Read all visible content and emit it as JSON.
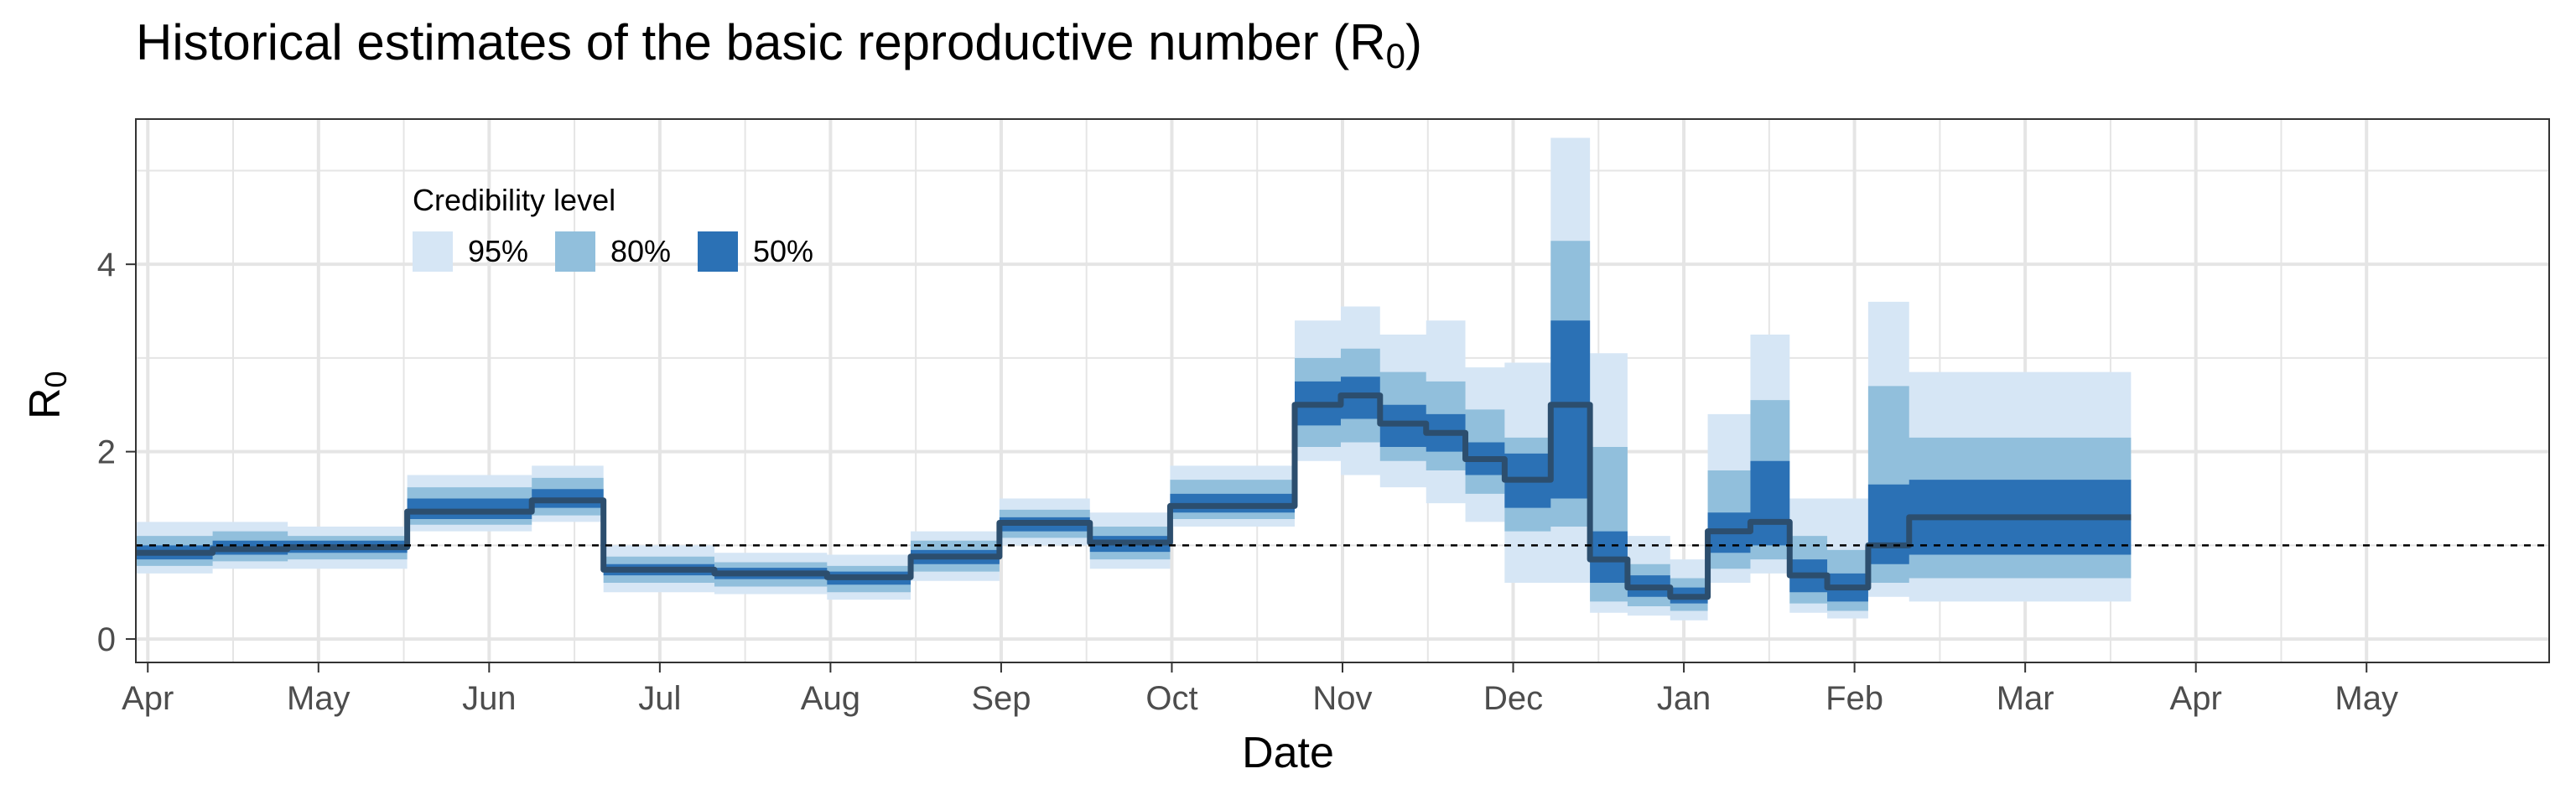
{
  "chart_data": {
    "type": "area",
    "title_main": "Historical estimates of the basic reproductive number (R",
    "title_sub": "0",
    "title_end": ")",
    "xlabel": "Date",
    "ylabel_main": "R",
    "ylabel_sub": "0",
    "x_ticks": [
      "Apr",
      "May",
      "Jun",
      "Jul",
      "Aug",
      "Sep",
      "Oct",
      "Nov",
      "Dec",
      "Jan",
      "Feb",
      "Mar",
      "Apr",
      "May"
    ],
    "y_ticks": [
      0,
      2,
      4
    ],
    "xlim": [
      -0.07,
      14.07
    ],
    "ylim": [
      -0.25,
      5.55
    ],
    "reference_line": 1,
    "grid": true,
    "legend": {
      "title": "Credibility level",
      "position": "top-left",
      "items": [
        {
          "label": "95%",
          "color": "#d6e6f5"
        },
        {
          "label": "80%",
          "color": "#91bfdc"
        },
        {
          "label": "50%",
          "color": "#2b71b5"
        }
      ]
    },
    "colors": {
      "median": "#2c4e6e",
      "reference": "#000000",
      "grid": "#e5e5e5"
    },
    "series": [
      {
        "name": "95%",
        "lower": [
          0.7,
          0.75,
          0.75,
          1.15,
          1.25,
          0.5,
          0.48,
          0.42,
          0.62,
          1.0,
          0.75,
          1.2,
          1.9,
          1.75,
          1.62,
          1.45,
          1.25,
          0.6,
          0.6,
          0.28,
          0.25,
          0.2,
          0.6,
          0.7,
          0.28,
          0.22,
          0.45,
          0.4,
          0.4
        ]
      },
      {
        "name": "95%",
        "upper": [
          1.25,
          1.25,
          1.2,
          1.75,
          1.85,
          1.0,
          0.92,
          0.9,
          1.15,
          1.5,
          1.35,
          1.85,
          3.4,
          3.55,
          3.25,
          3.4,
          2.9,
          2.95,
          5.35,
          3.05,
          1.1,
          0.85,
          2.4,
          3.25,
          1.5,
          1.5,
          3.6,
          2.85,
          2.85
        ]
      },
      {
        "name": "80%",
        "lower": [
          0.78,
          0.83,
          0.85,
          1.22,
          1.32,
          0.6,
          0.56,
          0.5,
          0.72,
          1.08,
          0.85,
          1.28,
          2.05,
          2.1,
          1.9,
          1.8,
          1.55,
          1.15,
          1.2,
          0.4,
          0.35,
          0.3,
          0.75,
          0.85,
          0.38,
          0.3,
          0.6,
          0.65,
          0.65
        ]
      },
      {
        "name": "80%",
        "upper": [
          1.1,
          1.15,
          1.1,
          1.62,
          1.72,
          0.88,
          0.82,
          0.78,
          1.05,
          1.38,
          1.2,
          1.7,
          3.0,
          3.1,
          2.85,
          2.75,
          2.45,
          2.15,
          4.25,
          2.05,
          0.8,
          0.65,
          1.8,
          2.55,
          1.1,
          0.95,
          2.7,
          2.15,
          2.15
        ]
      },
      {
        "name": "50%",
        "lower": [
          0.85,
          0.9,
          0.92,
          1.28,
          1.4,
          0.68,
          0.64,
          0.58,
          0.8,
          1.15,
          0.93,
          1.35,
          2.28,
          2.35,
          2.05,
          2.0,
          1.75,
          1.4,
          1.5,
          0.6,
          0.45,
          0.38,
          0.92,
          1.0,
          0.5,
          0.4,
          0.8,
          0.9,
          0.9
        ]
      },
      {
        "name": "50%",
        "upper": [
          1.0,
          1.05,
          1.05,
          1.5,
          1.6,
          0.8,
          0.76,
          0.72,
          0.95,
          1.3,
          1.1,
          1.55,
          2.75,
          2.8,
          2.5,
          2.4,
          2.1,
          1.98,
          3.4,
          1.15,
          0.68,
          0.55,
          1.35,
          1.9,
          0.85,
          0.7,
          1.65,
          1.7,
          1.7
        ]
      },
      {
        "name": "median",
        "values": [
          0.92,
          0.96,
          0.98,
          1.36,
          1.48,
          0.74,
          0.7,
          0.66,
          0.88,
          1.24,
          1.03,
          1.42,
          2.5,
          2.6,
          2.3,
          2.2,
          1.92,
          1.7,
          2.5,
          0.85,
          0.55,
          0.45,
          1.15,
          1.25,
          0.68,
          0.55,
          1.0,
          1.3,
          1.3
        ]
      }
    ],
    "x": [
      -0.07,
      0.38,
      0.82,
      1.52,
      2.25,
      2.67,
      3.32,
      3.98,
      4.47,
      4.99,
      5.52,
      5.99,
      6.72,
      6.99,
      7.22,
      7.49,
      7.72,
      7.95,
      8.22,
      8.45,
      8.67,
      8.92,
      9.14,
      9.39,
      9.62,
      9.84,
      10.08,
      10.32,
      11.62
    ]
  }
}
